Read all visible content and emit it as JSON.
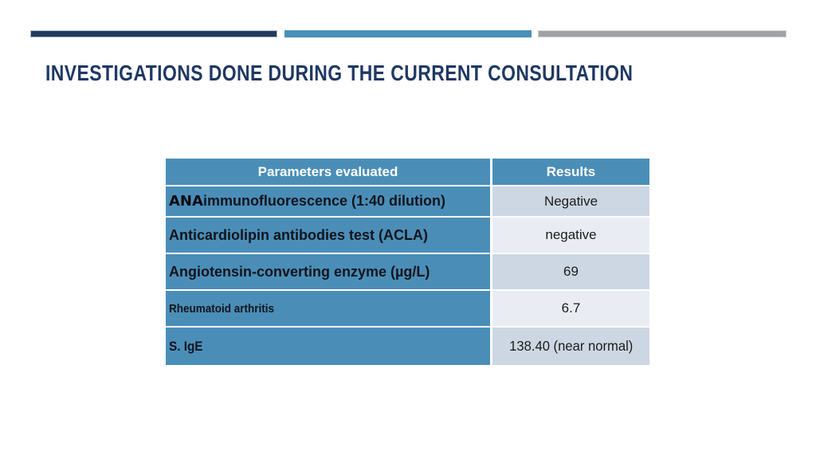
{
  "slide": {
    "title": "INVESTIGATIONS DONE DURING THE CURRENT CONSULTATION"
  },
  "accent_bars": {
    "navy_color": "#223a5e",
    "blue_color": "#4a90ba",
    "gray_color": "#9fa3a8"
  },
  "table": {
    "headers": {
      "parameter": "Parameters evaluated",
      "result": "Results"
    },
    "rows": [
      {
        "prefix": "ANA",
        "rest": " immunofluorescence (1:40 dilution)",
        "result": "Negative"
      },
      {
        "prefix": "",
        "rest": "Anticardiolipin antibodies test (ACLA)",
        "result": "negative"
      },
      {
        "prefix": "",
        "rest": "Angiotensin-converting enzyme (µg/L)",
        "result": "69"
      },
      {
        "prefix": "",
        "rest": "Rheumatoid arthritis",
        "result": "6.7"
      },
      {
        "prefix": "",
        "rest": "S. IgE",
        "result": "138.40 (near normal)"
      }
    ],
    "colors": {
      "header_bg": "#4a8eb8",
      "parameter_bg": "#4a8eb8",
      "result_band_dark": "#cdd7e3",
      "result_band_light": "#e9edf3",
      "title_text": "#1f3864"
    }
  }
}
